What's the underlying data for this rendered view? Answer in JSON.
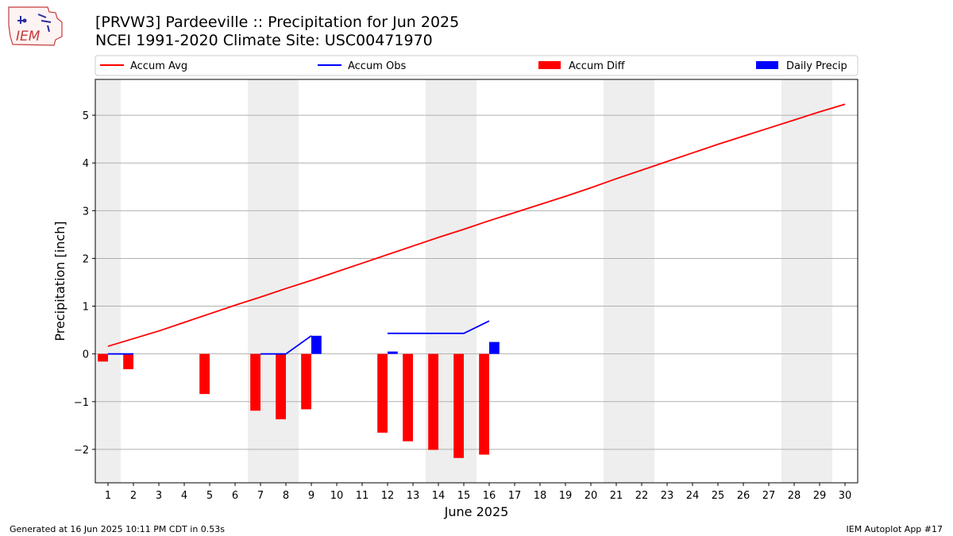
{
  "header": {
    "title_line1": "[PRVW3] Pardeeville :: Precipitation for Jun 2025",
    "title_line2": "NCEI 1991-2020 Climate Site: USC00471970"
  },
  "logo": {
    "text": "IEM"
  },
  "footer": {
    "generated": "Generated at 16 Jun 2025 10:11 PM CDT in 0.53s",
    "app": "IEM Autoplot App #17"
  },
  "colors": {
    "accum_avg": "#ff0000",
    "accum_obs": "#0000ff",
    "accum_diff": "#ff0000",
    "daily_precip": "#0000ff",
    "weekend_shade": "#eeeeee",
    "grid": "#b0b0b0"
  },
  "chart_data": {
    "type": "bar",
    "xlabel": "June 2025",
    "ylabel": "Precipitation [inch]",
    "xlim": [
      0.5,
      30.5
    ],
    "ylim": [
      -2.7,
      5.75
    ],
    "x_ticks": [
      1,
      2,
      3,
      4,
      5,
      6,
      7,
      8,
      9,
      10,
      11,
      12,
      13,
      14,
      15,
      16,
      17,
      18,
      19,
      20,
      21,
      22,
      23,
      24,
      25,
      26,
      27,
      28,
      29,
      30
    ],
    "y_ticks": [
      -2,
      -1,
      0,
      1,
      2,
      3,
      4,
      5
    ],
    "y_tick_labels": [
      "−2",
      "−1",
      "0",
      "1",
      "2",
      "3",
      "4",
      "5"
    ],
    "grid": "horizontal",
    "legend_position": "top, above plot",
    "weekend_shading": [
      [
        0.5,
        1.5
      ],
      [
        6.5,
        8.5
      ],
      [
        13.5,
        15.5
      ],
      [
        20.5,
        22.5
      ],
      [
        27.5,
        29.5
      ]
    ],
    "legend": [
      {
        "label": "Accum Avg",
        "kind": "line",
        "color": "#ff0000"
      },
      {
        "label": "Accum Obs",
        "kind": "line",
        "color": "#0000ff"
      },
      {
        "label": "Accum Diff",
        "kind": "bar",
        "color": "#ff0000"
      },
      {
        "label": "Daily Precip",
        "kind": "bar",
        "color": "#0000ff"
      }
    ],
    "series": [
      {
        "name": "Accum Avg",
        "type": "line",
        "x": [
          1,
          2,
          3,
          4,
          5,
          6,
          7,
          8,
          9,
          10,
          11,
          12,
          13,
          14,
          15,
          16,
          17,
          18,
          19,
          20,
          21,
          22,
          23,
          24,
          25,
          26,
          27,
          28,
          29,
          30
        ],
        "values": [
          0.16,
          0.32,
          0.48,
          0.66,
          0.84,
          1.02,
          1.19,
          1.37,
          1.54,
          1.72,
          1.9,
          2.08,
          2.26,
          2.44,
          2.61,
          2.79,
          2.96,
          3.13,
          3.3,
          3.48,
          3.67,
          3.85,
          4.03,
          4.21,
          4.39,
          4.56,
          4.73,
          4.9,
          5.07,
          5.23
        ]
      },
      {
        "name": "Accum Obs",
        "type": "line",
        "segments": [
          {
            "x": [
              1,
              2
            ],
            "values": [
              0.0,
              0.0
            ]
          },
          {
            "x": [
              7,
              8,
              9
            ],
            "values": [
              0.0,
              0.0,
              0.38
            ]
          },
          {
            "x": [
              12,
              13,
              14,
              15,
              16
            ],
            "values": [
              0.43,
              0.43,
              0.43,
              0.43,
              0.69
            ]
          }
        ]
      },
      {
        "name": "Accum Diff",
        "type": "bar",
        "x": [
          1,
          2,
          5,
          7,
          8,
          9,
          12,
          13,
          14,
          15,
          16
        ],
        "values": [
          -0.16,
          -0.32,
          -0.84,
          -1.19,
          -1.37,
          -1.16,
          -1.65,
          -1.83,
          -2.01,
          -2.18,
          -2.11
        ]
      },
      {
        "name": "Daily Precip",
        "type": "bar",
        "x": [
          9,
          12,
          16
        ],
        "values": [
          0.38,
          0.05,
          0.25
        ]
      }
    ]
  }
}
